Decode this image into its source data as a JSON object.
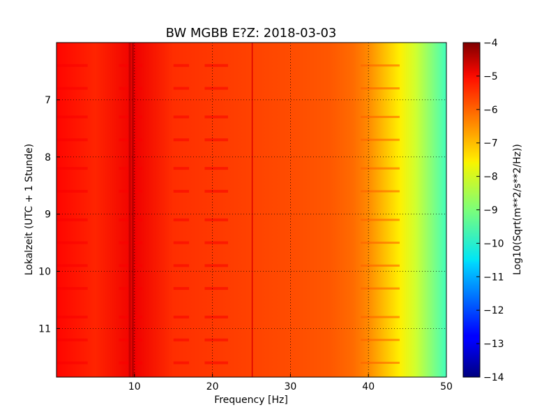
{
  "chart_data": {
    "type": "heatmap",
    "title": "BW MGBB E?Z: 2018-03-03",
    "xlabel": "Frequency [Hz]",
    "ylabel": "Lokalzeit (UTC + 1 Stunde)",
    "colorbar_label": "Log10(Sqrt(m**2/s**2/Hz))",
    "colormap": "jet",
    "xlim": [
      0,
      50
    ],
    "ylim": [
      11.85,
      6.0
    ],
    "y_inverted": true,
    "x_ticks": [
      10,
      20,
      30,
      40,
      50
    ],
    "x_tick_labels": [
      "10",
      "20",
      "30",
      "40",
      "50"
    ],
    "y_ticks": [
      7,
      8,
      9,
      10,
      11
    ],
    "y_tick_labels": [
      "7",
      "8",
      "9",
      "10",
      "11"
    ],
    "color_range": [
      -14,
      -4
    ],
    "colorbar_ticks": [
      -4,
      -5,
      -6,
      -7,
      -8,
      -9,
      -10,
      -11,
      -12,
      -13,
      -14
    ],
    "colorbar_tick_labels": [
      "−4",
      "−5",
      "−6",
      "−7",
      "−8",
      "−9",
      "−10",
      "−11",
      "−12",
      "−13",
      "−14"
    ],
    "grid": true,
    "grid_style": "dotted",
    "spectrum_profile": {
      "freq": [
        0,
        5,
        10,
        15,
        20,
        25,
        30,
        35,
        38,
        40,
        42,
        44,
        46,
        48,
        50
      ],
      "level": [
        -5.3,
        -5.6,
        -5.1,
        -5.7,
        -5.8,
        -5.9,
        -6.0,
        -6.1,
        -6.3,
        -6.6,
        -7.1,
        -7.6,
        -8.2,
        -8.9,
        -9.6
      ]
    },
    "narrowband_lines": [
      {
        "freq": 9.4,
        "level": -4.7
      },
      {
        "freq": 9.8,
        "level": -4.6
      },
      {
        "freq": 25.1,
        "level": -4.9
      }
    ],
    "band_times": [
      6.4,
      6.8,
      7.3,
      7.7,
      8.2,
      8.6,
      9.1,
      9.5,
      9.9,
      10.3,
      10.8,
      11.2,
      11.6
    ]
  }
}
